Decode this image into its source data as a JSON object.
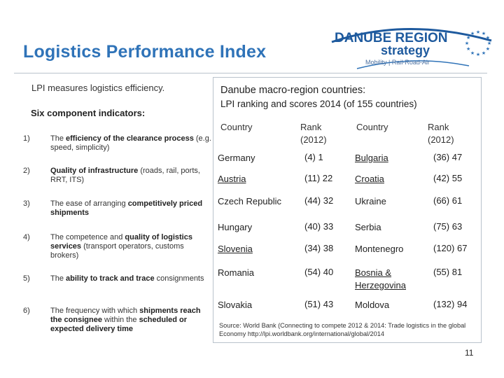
{
  "title": "Logistics Performance Index",
  "logo": {
    "line1": "DANUBE REGION",
    "line2": "strategy",
    "line3": "Mobility | Rail-Road-Air",
    "colors": {
      "blue": "#1e5a9e",
      "star": "#2f73b8"
    }
  },
  "left": {
    "intro": "LPI measures logistics efficiency.",
    "six_label": "Six component indicators:",
    "indicators": [
      {
        "num": "1)",
        "pre": "The ",
        "bold": "efficiency of the clearance process",
        "post": " (e.g. speed, simplicity)"
      },
      {
        "num": "2)",
        "pre": " ",
        "bold": "Quality of infrastructure",
        "post": " (roads, rail, ports, RRT, ITS)"
      },
      {
        "num": "3)",
        "pre": "The ease of arranging ",
        "bold": "competitively priced shipments",
        "post": ""
      },
      {
        "num": "4)",
        "pre": "The competence and ",
        "bold": "quality of logistics services",
        "post": " (transport operators, customs brokers)"
      },
      {
        "num": "5)",
        "pre": "The ",
        "bold": "ability to track and trace",
        "post": " consignments"
      },
      {
        "num": "6)",
        "pre": "The frequency with which ",
        "bold": "shipments reach the consignee",
        "post": " within the ",
        "bold2": "scheduled or expected delivery time"
      }
    ]
  },
  "table": {
    "title": "Danube macro-region countries:",
    "subtitle": "LPI ranking and scores 2014 (of 155 countries)",
    "headers": {
      "country": "Country",
      "rank": "Rank\n(2012)"
    },
    "left_rows": [
      {
        "country": "Germany",
        "link": false,
        "prev": "(4)",
        "rank": "1"
      },
      {
        "country": "Austria",
        "link": true,
        "prev": "(11)",
        "rank": "22"
      },
      {
        "country": "Czech Republic",
        "link": false,
        "prev": "(44)",
        "rank": "32"
      },
      {
        "country": "Hungary",
        "link": false,
        "prev": "(40)",
        "rank": "33"
      },
      {
        "country": "Slovenia",
        "link": true,
        "prev": "(34)",
        "rank": "38"
      },
      {
        "country": "Romania",
        "link": false,
        "prev": "(54)",
        "rank": "40"
      },
      {
        "country": "Slovakia",
        "link": false,
        "prev": "(51)",
        "rank": "43"
      }
    ],
    "right_rows": [
      {
        "country": "Bulgaria",
        "link": true,
        "prev": "(36)",
        "rank": "47"
      },
      {
        "country": "Croatia",
        "link": true,
        "prev": "(42)",
        "rank": "55"
      },
      {
        "country": "Ukraine",
        "link": false,
        "prev": "(66)",
        "rank": "61"
      },
      {
        "country": "Serbia",
        "link": false,
        "prev": "(75)",
        "rank": "63"
      },
      {
        "country": "Montenegro",
        "link": false,
        "prev": "(120)",
        "rank": "67"
      },
      {
        "country": "Bosnia & Herzegovina",
        "link": true,
        "prev": "(55)",
        "rank": "81"
      },
      {
        "country": "Moldova",
        "link": false,
        "prev": "(132)",
        "rank": "94"
      }
    ],
    "source": "Source: World Bank (Connecting to compete 2012 & 2014: Trade logistics in the global Economy http://lpi.worldbank.org/international/global/2014"
  },
  "page_number": "11"
}
